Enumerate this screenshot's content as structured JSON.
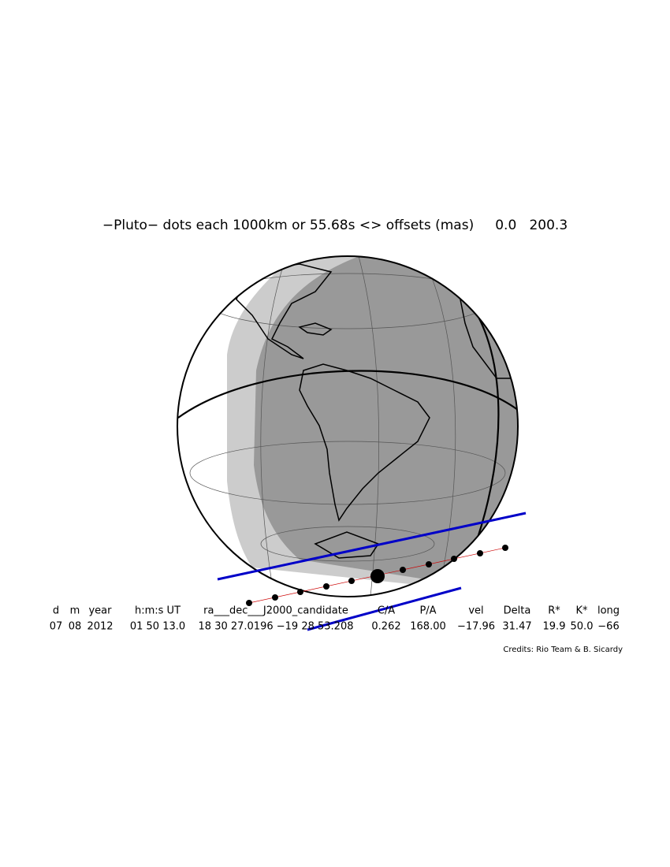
{
  "header": {
    "title": "−Pluto− dots each 1000km or 55.68s <> offsets (mas)     0.0   200.3"
  },
  "table": {
    "columns": [
      "d",
      "m",
      "year",
      "h:m:s UT",
      "ra___dec___J2000_candidate",
      "C/A",
      "P/A",
      "vel",
      "Delta",
      "R*",
      "K*",
      "long"
    ],
    "values": [
      "07",
      "08",
      "2012",
      "01 50 13.0",
      "18 30 27.0196 −19 28 53.208",
      "0.262",
      "168.00",
      "−17.96",
      "31.47",
      "19.9",
      "50.0",
      "−66"
    ]
  },
  "footer": {
    "credits": "Credits: Rio Team & B. Sicardy"
  }
}
